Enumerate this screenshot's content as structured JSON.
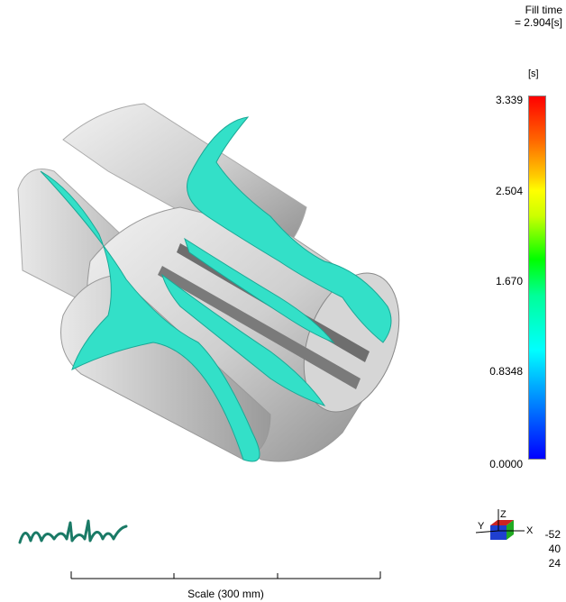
{
  "fill_time": {
    "label": "Fill time",
    "value": "= 2.904[s]"
  },
  "legend": {
    "unit": "[s]",
    "ticks": [
      "3.339",
      "2.504",
      "1.670",
      "0.8348",
      "0.0000"
    ],
    "colors": [
      "#ff0000",
      "#ffff00",
      "#00ff00",
      "#00ffff",
      "#0000ff"
    ]
  },
  "logo": {
    "text": "moldflow",
    "color": "#1a7a66"
  },
  "scale": {
    "label": "Scale (300 mm)"
  },
  "axis_triad": {
    "x_label": "X",
    "y_label": "Y",
    "z_label": "Z",
    "rotation": [
      "-52",
      "40",
      "24"
    ]
  },
  "model_colors": {
    "part": "#c8c8c8",
    "melt_front": "#33e0c8"
  }
}
